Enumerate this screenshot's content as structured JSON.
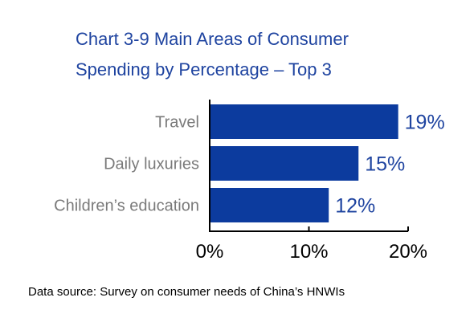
{
  "chart_data": {
    "type": "bar",
    "orientation": "horizontal",
    "title_lines": [
      "Chart 3-9 Main Areas of Consumer",
      "Spending by Percentage – Top 3"
    ],
    "categories": [
      "Travel",
      "Daily luxuries",
      "Children’s education"
    ],
    "values": [
      19,
      15,
      12
    ],
    "data_labels": [
      "19%",
      "15%",
      "12%"
    ],
    "xlim": [
      0,
      20
    ],
    "x_ticks": [
      0,
      10,
      20
    ],
    "x_tick_labels": [
      "0%",
      "10%",
      "20%"
    ],
    "grid": false,
    "legend": "none",
    "source": "Data source: Survey on consumer needs of China’s HNWIs"
  },
  "colors": {
    "bar": "#0c3b9e",
    "title": "#1f44a0",
    "data_label": "#1f44a0",
    "category_label": "#7a7a7a",
    "axis": "#000000"
  }
}
